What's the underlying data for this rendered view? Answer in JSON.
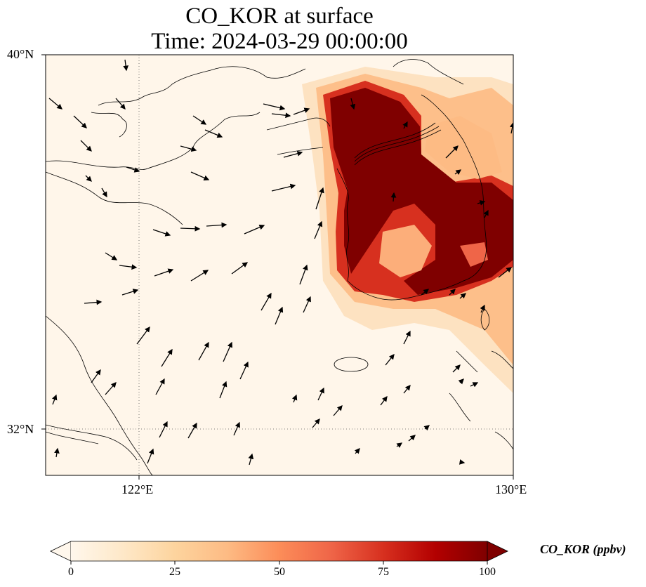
{
  "title": {
    "line1": "CO_KOR at surface",
    "line2": "Time: 2024-03-29 00:00:00"
  },
  "axes": {
    "lat_labels": [
      "40°N",
      "32°N"
    ],
    "lon_labels": [
      "122°E",
      "130°E"
    ],
    "lat_range": [
      31,
      40
    ],
    "lon_range": [
      120,
      130
    ],
    "gridlines": {
      "lat": [
        32
      ],
      "lon": [
        122
      ],
      "style": "dotted"
    }
  },
  "colorbar": {
    "label": "CO_KOR (ppbv)",
    "ticks": [
      "0",
      "25",
      "50",
      "75",
      "100"
    ],
    "range": [
      0,
      100
    ],
    "extend": "both",
    "colormap": "OrRd",
    "colors": [
      "#fff7ec",
      "#fee8c8",
      "#fdd49e",
      "#fdbb84",
      "#fc8d59",
      "#ef6548",
      "#d7301f",
      "#b30000",
      "#7f0000"
    ]
  },
  "map_field": {
    "description_values": "CO_KOR concentration (ppbv); plume >100 over Korean peninsula, 20-60 over Yellow Sea east edge and Japan Sea, ~0-10 elsewhere"
  }
}
